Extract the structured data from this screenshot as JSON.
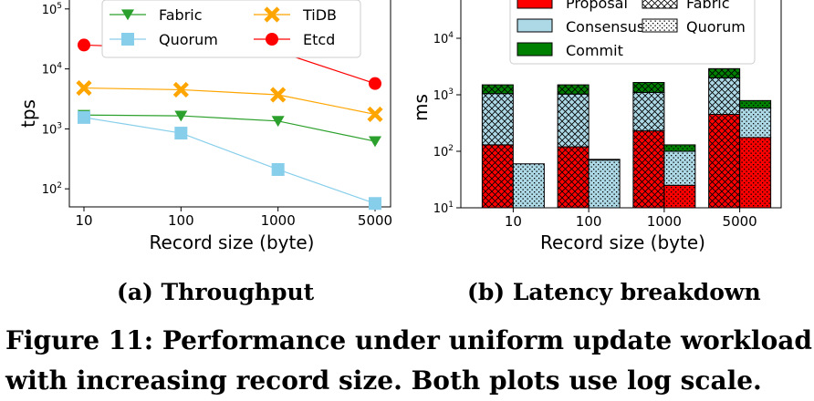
{
  "chart_data": [
    {
      "type": "line",
      "caption": "(a) Throughput",
      "xlabel": "Record size (byte)",
      "ylabel": "tps",
      "categories": [
        "10",
        "100",
        "1000",
        "5000"
      ],
      "yscale": "log",
      "ylim": [
        50,
        200000
      ],
      "yticks": [
        {
          "v": 100,
          "b": "10",
          "e": "2"
        },
        {
          "v": 1000,
          "b": "10",
          "e": "3"
        },
        {
          "v": 10000,
          "b": "10",
          "e": "4"
        },
        {
          "v": 100000,
          "b": "10",
          "e": "5"
        }
      ],
      "legend_placement": "top",
      "series": [
        {
          "name": "Fabric",
          "marker": "triangle-down",
          "color": "#2ca02c",
          "values": [
            1700,
            1650,
            1350,
            620
          ]
        },
        {
          "name": "TiDB",
          "marker": "x",
          "color": "#ffa500",
          "values": [
            4800,
            4500,
            3700,
            1750
          ]
        },
        {
          "name": "Quorum",
          "marker": "square",
          "color": "#87ceeb",
          "values": [
            1550,
            850,
            210,
            57
          ]
        },
        {
          "name": "Etcd",
          "marker": "circle",
          "color": "#ff0000",
          "values": [
            25000,
            22000,
            19500,
            5700
          ]
        }
      ]
    },
    {
      "type": "bar",
      "stacked": true,
      "caption": "(b) Latency breakdown",
      "xlabel": "Record size (byte)",
      "ylabel": "ms",
      "categories": [
        "10",
        "100",
        "1000",
        "5000"
      ],
      "yscale": "log",
      "ylim": [
        10,
        100000
      ],
      "yticks": [
        {
          "v": 10,
          "b": "10",
          "e": "1"
        },
        {
          "v": 100,
          "b": "10",
          "e": "2"
        },
        {
          "v": 1000,
          "b": "10",
          "e": "3"
        },
        {
          "v": 10000,
          "b": "10",
          "e": "4"
        }
      ],
      "legend_placement": "top",
      "phases": [
        {
          "name": "Proposal",
          "color": "#ff0000"
        },
        {
          "name": "Consensus",
          "color": "#add8e6"
        },
        {
          "name": "Commit",
          "color": "#008000"
        }
      ],
      "systems": [
        {
          "name": "Fabric",
          "pattern": "crosshatch"
        },
        {
          "name": "Quorum",
          "pattern": "dots"
        }
      ],
      "series": [
        {
          "system": "Fabric",
          "proposal": [
            130,
            120,
            230,
            450
          ],
          "consensus": [
            1050,
            1030,
            1100,
            2000
          ],
          "commit": [
            1500,
            1500,
            1650,
            2900
          ]
        },
        {
          "system": "Quorum",
          "proposal": [
            0,
            0,
            25,
            175
          ],
          "consensus": [
            60,
            70,
            100,
            580
          ],
          "commit": [
            60,
            72,
            130,
            790
          ]
        }
      ]
    }
  ],
  "figure_caption": {
    "line1_words": [
      "Figure",
      "11:",
      "Performance",
      "under",
      "uniform",
      "update",
      "workload"
    ],
    "line2": "with increasing record size. Both plots use log scale."
  }
}
